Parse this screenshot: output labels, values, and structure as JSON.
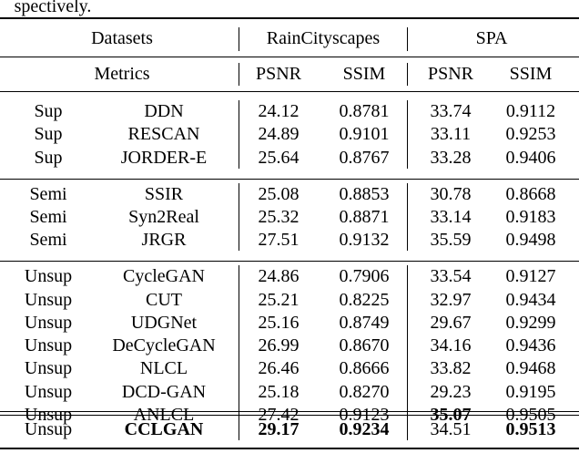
{
  "caption_fragment": "spectively.",
  "table": {
    "header": {
      "datasets": "Datasets",
      "groups": [
        "RainCityscapes",
        "SPA"
      ]
    },
    "metrics": {
      "label": "Metrics",
      "columns": [
        "PSNR",
        "SSIM",
        "PSNR",
        "SSIM"
      ]
    },
    "sections": [
      {
        "rows": [
          {
            "cells": [
              "Sup",
              "DDN",
              "24.12",
              "0.8781",
              "33.74",
              "0.9112"
            ],
            "bold": []
          },
          {
            "cells": [
              "Sup",
              "RESCAN",
              "24.89",
              "0.9101",
              "33.11",
              "0.9253"
            ],
            "bold": []
          },
          {
            "cells": [
              "Sup",
              "JORDER-E",
              "25.64",
              "0.8767",
              "33.28",
              "0.9406"
            ],
            "bold": []
          }
        ]
      },
      {
        "rows": [
          {
            "cells": [
              "Semi",
              "SSIR",
              "25.08",
              "0.8853",
              "30.78",
              "0.8668"
            ],
            "bold": []
          },
          {
            "cells": [
              "Semi",
              "Syn2Real",
              "25.32",
              "0.8871",
              "33.14",
              "0.9183"
            ],
            "bold": []
          },
          {
            "cells": [
              "Semi",
              "JRGR",
              "27.51",
              "0.9132",
              "35.59",
              "0.9498"
            ],
            "bold": []
          }
        ]
      },
      {
        "rows": [
          {
            "cells": [
              "Unsup",
              "CycleGAN",
              "24.86",
              "0.7906",
              "33.54",
              "0.9127"
            ],
            "bold": []
          },
          {
            "cells": [
              "Unsup",
              "CUT",
              "25.21",
              "0.8225",
              "32.97",
              "0.9434"
            ],
            "bold": []
          },
          {
            "cells": [
              "Unsup",
              "UDGNet",
              "25.16",
              "0.8749",
              "29.67",
              "0.9299"
            ],
            "bold": []
          },
          {
            "cells": [
              "Unsup",
              "DeCycleGAN",
              "26.99",
              "0.8670",
              "34.16",
              "0.9436"
            ],
            "bold": []
          },
          {
            "cells": [
              "Unsup",
              "NLCL",
              "26.46",
              "0.8666",
              "33.82",
              "0.9468"
            ],
            "bold": []
          },
          {
            "cells": [
              "Unsup",
              "DCD-GAN",
              "25.18",
              "0.8270",
              "29.23",
              "0.9195"
            ],
            "bold": []
          },
          {
            "cells": [
              "Unsup",
              "ANLCL",
              "27.42",
              "0.9123",
              "35.07",
              "0.9505"
            ],
            "bold": [
              4
            ]
          }
        ]
      },
      {
        "rows": [
          {
            "cells": [
              "Unsup",
              "CCLGAN",
              "29.17",
              "0.9234",
              "34.51",
              "0.9513"
            ],
            "bold": [
              1,
              2,
              3,
              5
            ]
          }
        ]
      }
    ]
  }
}
